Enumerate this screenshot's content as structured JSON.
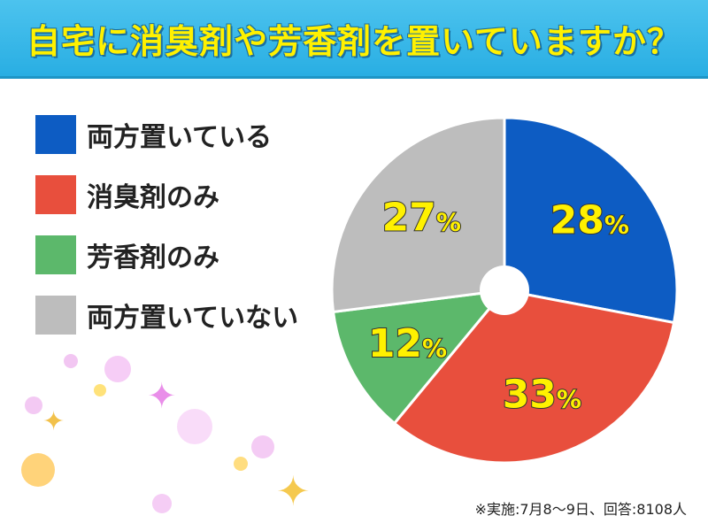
{
  "title": "自宅に消臭剤や芳香剤を置いていますか？",
  "footnote": "※実施:7月8～9日、回答:8108人",
  "chart_data": {
    "type": "pie",
    "title": "自宅に消臭剤や芳香剤を置いていますか？",
    "unit": "%",
    "categories": [
      "両方置いている",
      "消臭剤のみ",
      "芳香剤のみ",
      "両方置いていない"
    ],
    "values": [
      28,
      33,
      12,
      27
    ],
    "colors": [
      "#0d5cc3",
      "#e84f3d",
      "#5cb86b",
      "#bdbdbd"
    ],
    "legend": "left",
    "center_hole": true
  }
}
